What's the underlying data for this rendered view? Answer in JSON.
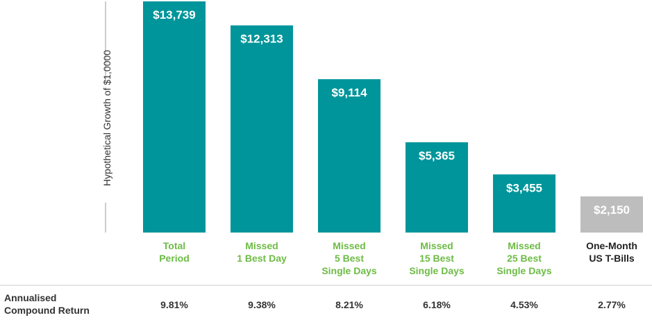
{
  "chart_data": {
    "type": "bar",
    "ylabel": "Hypothetical Growth of $1,0000",
    "ylim": [
      0,
      13739
    ],
    "grid": false,
    "categories": [
      [
        "Total",
        "Period"
      ],
      [
        "Missed",
        "1 Best Day"
      ],
      [
        "Missed",
        "5 Best",
        "Single Days"
      ],
      [
        "Missed",
        "15 Best",
        "Single Days"
      ],
      [
        "Missed",
        "25 Best",
        "Single Days"
      ],
      [
        "One-Month",
        "US T-Bills"
      ]
    ],
    "values": [
      13739,
      12313,
      9114,
      5365,
      3455,
      2150
    ],
    "value_labels": [
      "$13,739",
      "$12,313",
      "$9,114",
      "$5,365",
      "$3,455",
      "$2,150"
    ],
    "bar_colors": [
      "#00959a",
      "#00959a",
      "#00959a",
      "#00959a",
      "#00959a",
      "#bdbdbd"
    ],
    "category_colors": [
      "#6dbb45",
      "#6dbb45",
      "#6dbb45",
      "#6dbb45",
      "#6dbb45",
      "#222222"
    ],
    "returns_row_title": [
      "Annualised",
      "Compound Return"
    ],
    "returns": [
      "9.81%",
      "9.38%",
      "8.21%",
      "6.18%",
      "4.53%",
      "2.77%"
    ]
  }
}
